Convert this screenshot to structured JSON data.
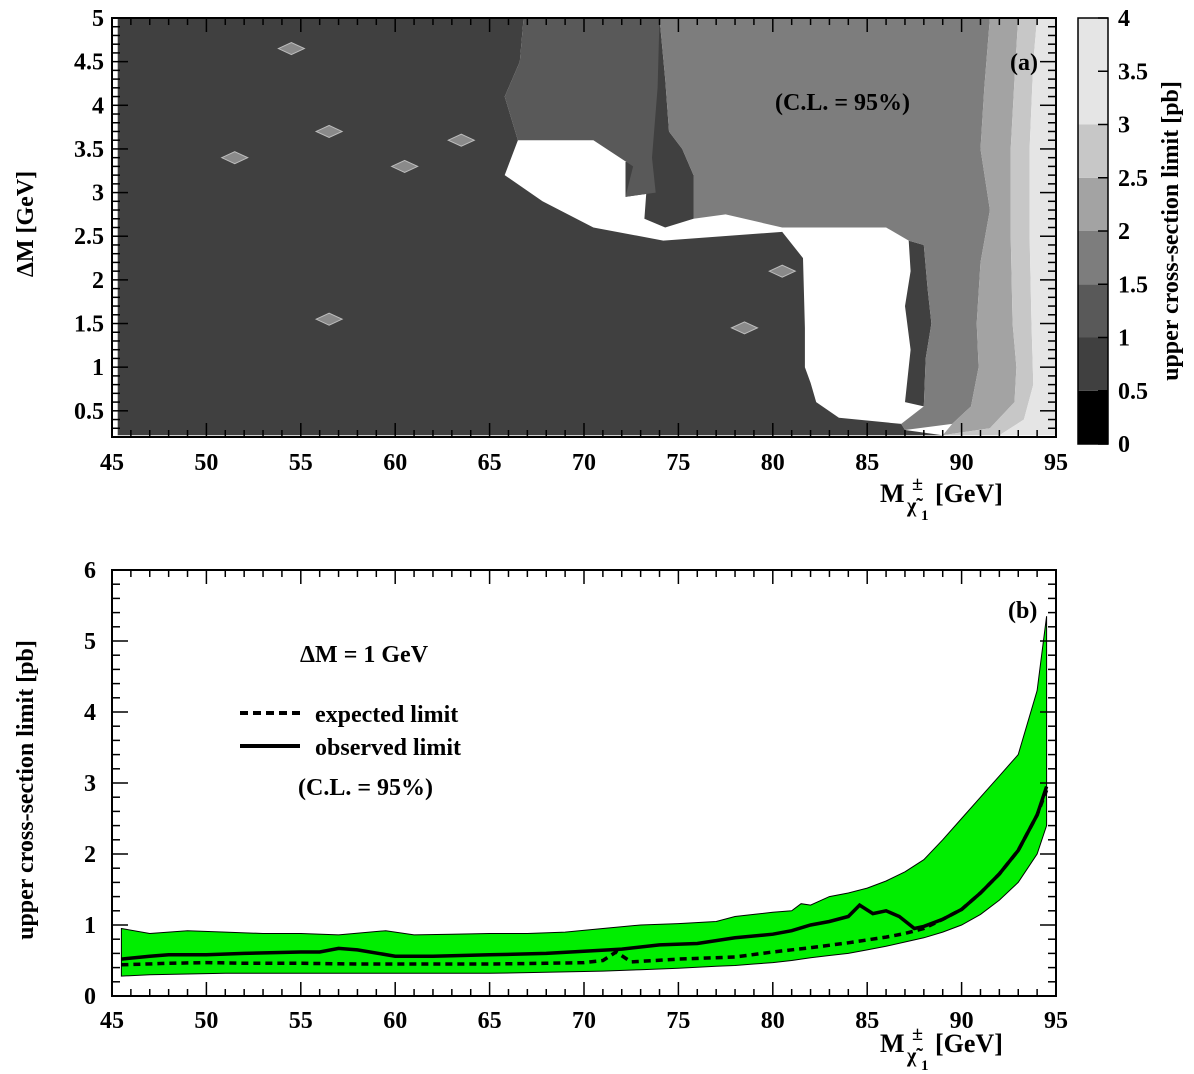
{
  "chart_data": [
    {
      "type": "heatmap",
      "panel_label": "(a)",
      "annotation": "(C.L. = 95%)",
      "xlabel_main": "M",
      "xlabel_sub": "χ̃",
      "xlabel_sub_index": "1",
      "xlabel_sup": "±",
      "xlabel_unit": "[GeV]",
      "ylabel": "ΔM [GeV]",
      "zlabel": "upper cross-section limit [pb]",
      "xlim": [
        45,
        95
      ],
      "ylim": [
        0.2,
        5
      ],
      "zlim": [
        0,
        4
      ],
      "x_ticks": [
        "45",
        "50",
        "55",
        "60",
        "65",
        "70",
        "75",
        "80",
        "85",
        "90",
        "95"
      ],
      "y_ticks": [
        "0.5",
        "1",
        "1.5",
        "2",
        "2.5",
        "3",
        "3.5",
        "4",
        "4.5",
        "5"
      ],
      "z_ticks": [
        "0",
        "0.5",
        "1",
        "1.5",
        "2",
        "2.5",
        "3",
        "3.5",
        "4"
      ],
      "z_levels": [
        {
          "from": 0,
          "to": 0.5,
          "color": "#000000"
        },
        {
          "from": 0.5,
          "to": 1,
          "color": "#404040"
        },
        {
          "from": 1,
          "to": 1.5,
          "color": "#595959"
        },
        {
          "from": 1.5,
          "to": 2,
          "color": "#7d7d7d"
        },
        {
          "from": 2,
          "to": 2.5,
          "color": "#a3a3a3"
        },
        {
          "from": 2.5,
          "to": 3,
          "color": "#c7c7c7"
        },
        {
          "from": 3,
          "to": 4,
          "color": "#e5e5e5"
        }
      ],
      "regions": [
        {
          "level": 1,
          "points": [
            [
              45.3,
              0.22
            ],
            [
              45.3,
              5
            ],
            [
              66.8,
              5
            ],
            [
              66.6,
              4.5
            ],
            [
              65.8,
              4.1
            ],
            [
              66.5,
              3.6
            ],
            [
              65.8,
              3.2
            ],
            [
              67.8,
              2.9
            ],
            [
              70.5,
              2.6
            ],
            [
              74.2,
              2.45
            ],
            [
              80.5,
              2.55
            ],
            [
              81.6,
              2.25
            ],
            [
              81.7,
              1.45
            ],
            [
              81.7,
              1.0
            ],
            [
              82.0,
              0.82
            ],
            [
              82.3,
              0.6
            ],
            [
              83.5,
              0.42
            ],
            [
              86.8,
              0.35
            ],
            [
              87.0,
              0.28
            ],
            [
              89.0,
              0.22
            ]
          ]
        },
        {
          "level": 1,
          "points": [
            [
              72.2,
              3.35
            ],
            [
              72.2,
              2.95
            ],
            [
              73.8,
              3.0
            ],
            [
              73.6,
              3.4
            ]
          ]
        },
        {
          "level": 1,
          "points": [
            [
              74.0,
              5
            ],
            [
              74.3,
              4.3
            ],
            [
              74.5,
              3.7
            ],
            [
              75.2,
              3.5
            ],
            [
              75.8,
              3.2
            ],
            [
              75.8,
              2.7
            ],
            [
              74.3,
              2.6
            ],
            [
              73.2,
              2.7
            ],
            [
              73.4,
              3.3
            ],
            [
              73.6,
              4.0
            ],
            [
              73.8,
              5
            ]
          ]
        },
        {
          "level": 1,
          "points": [
            [
              87.2,
              2.45
            ],
            [
              88.0,
              2.4
            ],
            [
              88.2,
              1.9
            ],
            [
              88.4,
              1.5
            ],
            [
              88.1,
              1.1
            ],
            [
              88.0,
              0.55
            ],
            [
              87.0,
              0.6
            ],
            [
              87.3,
              1.2
            ],
            [
              87.0,
              1.7
            ],
            [
              87.3,
              2.1
            ]
          ]
        },
        {
          "level": 2,
          "points": [
            [
              66.8,
              5
            ],
            [
              74.0,
              5
            ],
            [
              73.9,
              4.2
            ],
            [
              73.6,
              3.4
            ],
            [
              73.8,
              3.0
            ],
            [
              72.2,
              2.95
            ],
            [
              72.6,
              3.3
            ],
            [
              70.5,
              3.6
            ],
            [
              66.5,
              3.6
            ],
            [
              65.8,
              4.1
            ],
            [
              66.6,
              4.5
            ]
          ]
        },
        {
          "level": 3,
          "points": [
            [
              74.0,
              5
            ],
            [
              91.5,
              5
            ],
            [
              91.2,
              4.2
            ],
            [
              91.0,
              3.5
            ],
            [
              91.5,
              2.8
            ],
            [
              91.0,
              2.2
            ],
            [
              90.8,
              1.5
            ],
            [
              90.9,
              1.0
            ],
            [
              90.5,
              0.55
            ],
            [
              89.5,
              0.35
            ],
            [
              87.0,
              0.28
            ],
            [
              86.8,
              0.35
            ],
            [
              88.0,
              0.55
            ],
            [
              88.1,
              1.1
            ],
            [
              88.4,
              1.5
            ],
            [
              88.2,
              1.9
            ],
            [
              88.0,
              2.4
            ],
            [
              87.2,
              2.45
            ],
            [
              86.0,
              2.6
            ],
            [
              80.5,
              2.6
            ],
            [
              77.5,
              2.75
            ],
            [
              75.8,
              2.7
            ],
            [
              75.8,
              3.2
            ],
            [
              75.2,
              3.5
            ],
            [
              74.5,
              3.7
            ],
            [
              74.3,
              4.3
            ]
          ]
        },
        {
          "level": 4,
          "points": [
            [
              91.5,
              5
            ],
            [
              93.0,
              5
            ],
            [
              92.8,
              4.3
            ],
            [
              92.6,
              3.5
            ],
            [
              92.6,
              2.5
            ],
            [
              92.7,
              1.5
            ],
            [
              92.9,
              1.0
            ],
            [
              92.8,
              0.6
            ],
            [
              91.5,
              0.3
            ],
            [
              89.0,
              0.22
            ],
            [
              89.5,
              0.35
            ],
            [
              90.5,
              0.55
            ],
            [
              90.9,
              1.0
            ],
            [
              90.8,
              1.5
            ],
            [
              91.0,
              2.2
            ],
            [
              91.5,
              2.8
            ],
            [
              91.0,
              3.5
            ],
            [
              91.2,
              4.2
            ]
          ]
        },
        {
          "level": 5,
          "points": [
            [
              93.0,
              5
            ],
            [
              94.0,
              5
            ],
            [
              93.8,
              4.5
            ],
            [
              93.6,
              3.5
            ],
            [
              93.6,
              2.5
            ],
            [
              93.7,
              1.5
            ],
            [
              93.8,
              0.8
            ],
            [
              93.3,
              0.4
            ],
            [
              92.0,
              0.22
            ],
            [
              89.0,
              0.22
            ],
            [
              91.5,
              0.3
            ],
            [
              92.8,
              0.6
            ],
            [
              92.9,
              1.0
            ],
            [
              92.7,
              1.5
            ],
            [
              92.6,
              2.5
            ],
            [
              92.6,
              3.5
            ],
            [
              92.8,
              4.3
            ]
          ]
        },
        {
          "level": 6,
          "points": [
            [
              94.0,
              5
            ],
            [
              95,
              5
            ],
            [
              95,
              0.22
            ],
            [
              92.0,
              0.22
            ],
            [
              93.3,
              0.4
            ],
            [
              93.8,
              0.8
            ],
            [
              93.7,
              1.5
            ],
            [
              93.6,
              2.5
            ],
            [
              93.6,
              3.5
            ],
            [
              93.8,
              4.5
            ]
          ]
        }
      ],
      "islands": [
        {
          "x": 54.5,
          "y": 4.65
        },
        {
          "x": 56.5,
          "y": 3.7
        },
        {
          "x": 63.5,
          "y": 3.6
        },
        {
          "x": 51.5,
          "y": 3.4
        },
        {
          "x": 60.5,
          "y": 3.3
        },
        {
          "x": 80.5,
          "y": 2.1
        },
        {
          "x": 78.5,
          "y": 1.45
        },
        {
          "x": 56.5,
          "y": 1.55
        }
      ]
    },
    {
      "type": "line",
      "panel_label": "(b)",
      "annotation": "ΔM = 1 GeV",
      "cl_text": "(C.L. = 95%)",
      "xlabel_main": "M",
      "xlabel_sub": "χ̃",
      "xlabel_sub_index": "1",
      "xlabel_sup": "±",
      "xlabel_unit": "[GeV]",
      "ylabel": "upper cross-section limit [pb]",
      "xlim": [
        45,
        95
      ],
      "ylim": [
        0,
        6
      ],
      "x_ticks": [
        "45",
        "50",
        "55",
        "60",
        "65",
        "70",
        "75",
        "80",
        "85",
        "90",
        "95"
      ],
      "y_ticks": [
        "0",
        "1",
        "2",
        "3",
        "4",
        "5",
        "6"
      ],
      "band_color": "#00ee00",
      "series": [
        {
          "name": "expected limit",
          "style": "dashed",
          "x": [
            45.5,
            48,
            50,
            52,
            55,
            58,
            60,
            62,
            65,
            68,
            70,
            71,
            71.7,
            72.5,
            75,
            78,
            80,
            82,
            84,
            86,
            87,
            88,
            89,
            90,
            91,
            92,
            93,
            94,
            94.5
          ],
          "y": [
            0.44,
            0.46,
            0.47,
            0.46,
            0.46,
            0.45,
            0.45,
            0.45,
            0.45,
            0.46,
            0.47,
            0.5,
            0.62,
            0.48,
            0.52,
            0.55,
            0.62,
            0.68,
            0.75,
            0.83,
            0.88,
            0.95,
            1.08,
            1.22,
            1.45,
            1.72,
            2.05,
            2.55,
            2.9
          ]
        },
        {
          "name": "observed limit",
          "style": "solid",
          "x": [
            45.5,
            47,
            48,
            50,
            52,
            55,
            56,
            57,
            58,
            60,
            62,
            65,
            68,
            70,
            72,
            74,
            76,
            78,
            80,
            81,
            82,
            83,
            84,
            84.6,
            85.3,
            86,
            86.7,
            87.5,
            88,
            89,
            90,
            91,
            92,
            93,
            94,
            94.5
          ],
          "y": [
            0.52,
            0.56,
            0.58,
            0.58,
            0.6,
            0.62,
            0.62,
            0.67,
            0.65,
            0.56,
            0.56,
            0.58,
            0.6,
            0.63,
            0.66,
            0.72,
            0.74,
            0.82,
            0.87,
            0.92,
            1.0,
            1.05,
            1.12,
            1.28,
            1.16,
            1.2,
            1.12,
            0.95,
            0.98,
            1.08,
            1.22,
            1.45,
            1.72,
            2.05,
            2.55,
            2.95
          ]
        }
      ],
      "band": {
        "x": [
          45.5,
          47,
          49,
          51,
          53,
          55,
          57,
          59.5,
          61,
          63,
          65,
          67,
          69,
          71,
          73,
          75,
          77,
          78,
          79,
          80,
          81,
          81.5,
          82,
          83,
          84,
          85,
          86,
          87,
          88,
          89,
          90,
          91,
          92,
          93,
          94,
          94.5
        ],
        "upper": [
          0.95,
          0.88,
          0.92,
          0.9,
          0.88,
          0.88,
          0.86,
          0.92,
          0.86,
          0.87,
          0.88,
          0.88,
          0.9,
          0.95,
          1.0,
          1.02,
          1.05,
          1.12,
          1.15,
          1.18,
          1.2,
          1.3,
          1.28,
          1.4,
          1.45,
          1.52,
          1.62,
          1.75,
          1.92,
          2.2,
          2.5,
          2.8,
          3.1,
          3.4,
          4.3,
          5.35
        ],
        "lower": [
          0.28,
          0.3,
          0.31,
          0.32,
          0.32,
          0.32,
          0.32,
          0.32,
          0.32,
          0.32,
          0.32,
          0.33,
          0.34,
          0.35,
          0.37,
          0.39,
          0.42,
          0.43,
          0.45,
          0.47,
          0.5,
          0.52,
          0.54,
          0.57,
          0.6,
          0.65,
          0.7,
          0.76,
          0.82,
          0.9,
          1.0,
          1.15,
          1.35,
          1.6,
          2.0,
          2.4
        ]
      }
    }
  ]
}
